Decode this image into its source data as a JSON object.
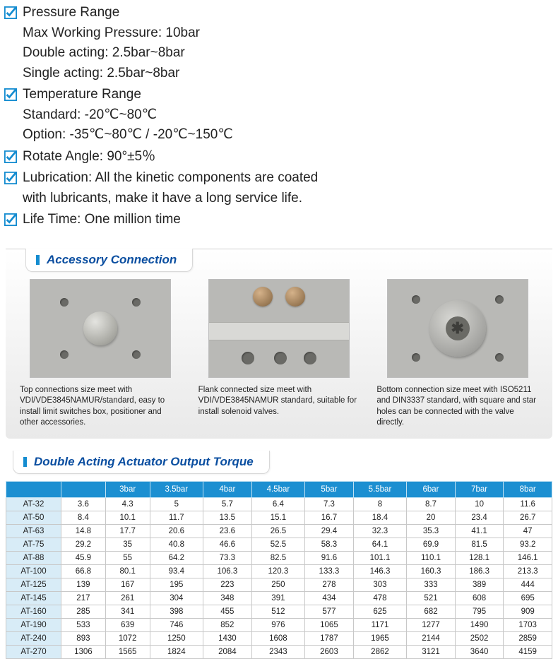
{
  "specs": {
    "pressure": {
      "title": "Pressure Range",
      "lines": [
        "Max Working Pressure: 10bar",
        "Double acting: 2.5bar~8bar",
        "Single acting: 2.5bar~8bar"
      ]
    },
    "temperature": {
      "title": "Temperature Range",
      "lines": [
        "Standard: -20℃~80℃",
        "Option: -35℃~80℃ / -20℃~150℃"
      ]
    },
    "rotate": "Rotate Angle: 90°±5％",
    "lubrication_l1": "Lubrication: All the kinetic components are coated",
    "lubrication_l2": "with  lubricants, make it have a long service life.",
    "lifetime": "Life Time: One million time"
  },
  "accessory": {
    "title": "Accessory Connection",
    "captions": [
      "Top connections size meet with VDI/VDE3845NAMUR/standard, easy to install limit switches box, positioner and other accessories.",
      "Flank connected size meet with VDI/VDE3845NAMUR standard, suitable for install solenoid valves.",
      "Bottom connection size meet with ISO5211 and DIN3337 standard, with square and star holes can be connected with the valve directly."
    ]
  },
  "torque": {
    "title": "Double Acting Actuator Output Torque",
    "headers": [
      "",
      "",
      "3bar",
      "3.5bar",
      "4bar",
      "4.5bar",
      "5bar",
      "5.5bar",
      "6bar",
      "7bar",
      "8bar"
    ],
    "rows": [
      [
        "AT-32",
        "3.6",
        "4.3",
        "5",
        "5.7",
        "6.4",
        "7.3",
        "8",
        "8.7",
        "10",
        "11.6"
      ],
      [
        "AT-50",
        "8.4",
        "10.1",
        "11.7",
        "13.5",
        "15.1",
        "16.7",
        "18.4",
        "20",
        "23.4",
        "26.7"
      ],
      [
        "AT-63",
        "14.8",
        "17.7",
        "20.6",
        "23.6",
        "26.5",
        "29.4",
        "32.3",
        "35.3",
        "41.1",
        "47"
      ],
      [
        "AT-75",
        "29.2",
        "35",
        "40.8",
        "46.6",
        "52.5",
        "58.3",
        "64.1",
        "69.9",
        "81.5",
        "93.2"
      ],
      [
        "AT-88",
        "45.9",
        "55",
        "64.2",
        "73.3",
        "82.5",
        "91.6",
        "101.1",
        "110.1",
        "128.1",
        "146.1"
      ],
      [
        "AT-100",
        "66.8",
        "80.1",
        "93.4",
        "106.3",
        "120.3",
        "133.3",
        "146.3",
        "160.3",
        "186.3",
        "213.3"
      ],
      [
        "AT-125",
        "139",
        "167",
        "195",
        "223",
        "250",
        "278",
        "303",
        "333",
        "389",
        "444"
      ],
      [
        "AT-145",
        "217",
        "261",
        "304",
        "348",
        "391",
        "434",
        "478",
        "521",
        "608",
        "695"
      ],
      [
        "AT-160",
        "285",
        "341",
        "398",
        "455",
        "512",
        "577",
        "625",
        "682",
        "795",
        "909"
      ],
      [
        "AT-190",
        "533",
        "639",
        "746",
        "852",
        "976",
        "1065",
        "1171",
        "1277",
        "1490",
        "1703"
      ],
      [
        "AT-240",
        "893",
        "1072",
        "1250",
        "1430",
        "1608",
        "1787",
        "1965",
        "2144",
        "2502",
        "2859"
      ],
      [
        "AT-270",
        "1306",
        "1565",
        "1824",
        "2084",
        "2343",
        "2603",
        "2862",
        "3121",
        "3640",
        "4159"
      ]
    ]
  },
  "colors": {
    "accent": "#148cd0",
    "title": "#0a4ea0",
    "table_header_bg": "#1c8fd1",
    "model_cell_bg": "#d8ecf7"
  }
}
